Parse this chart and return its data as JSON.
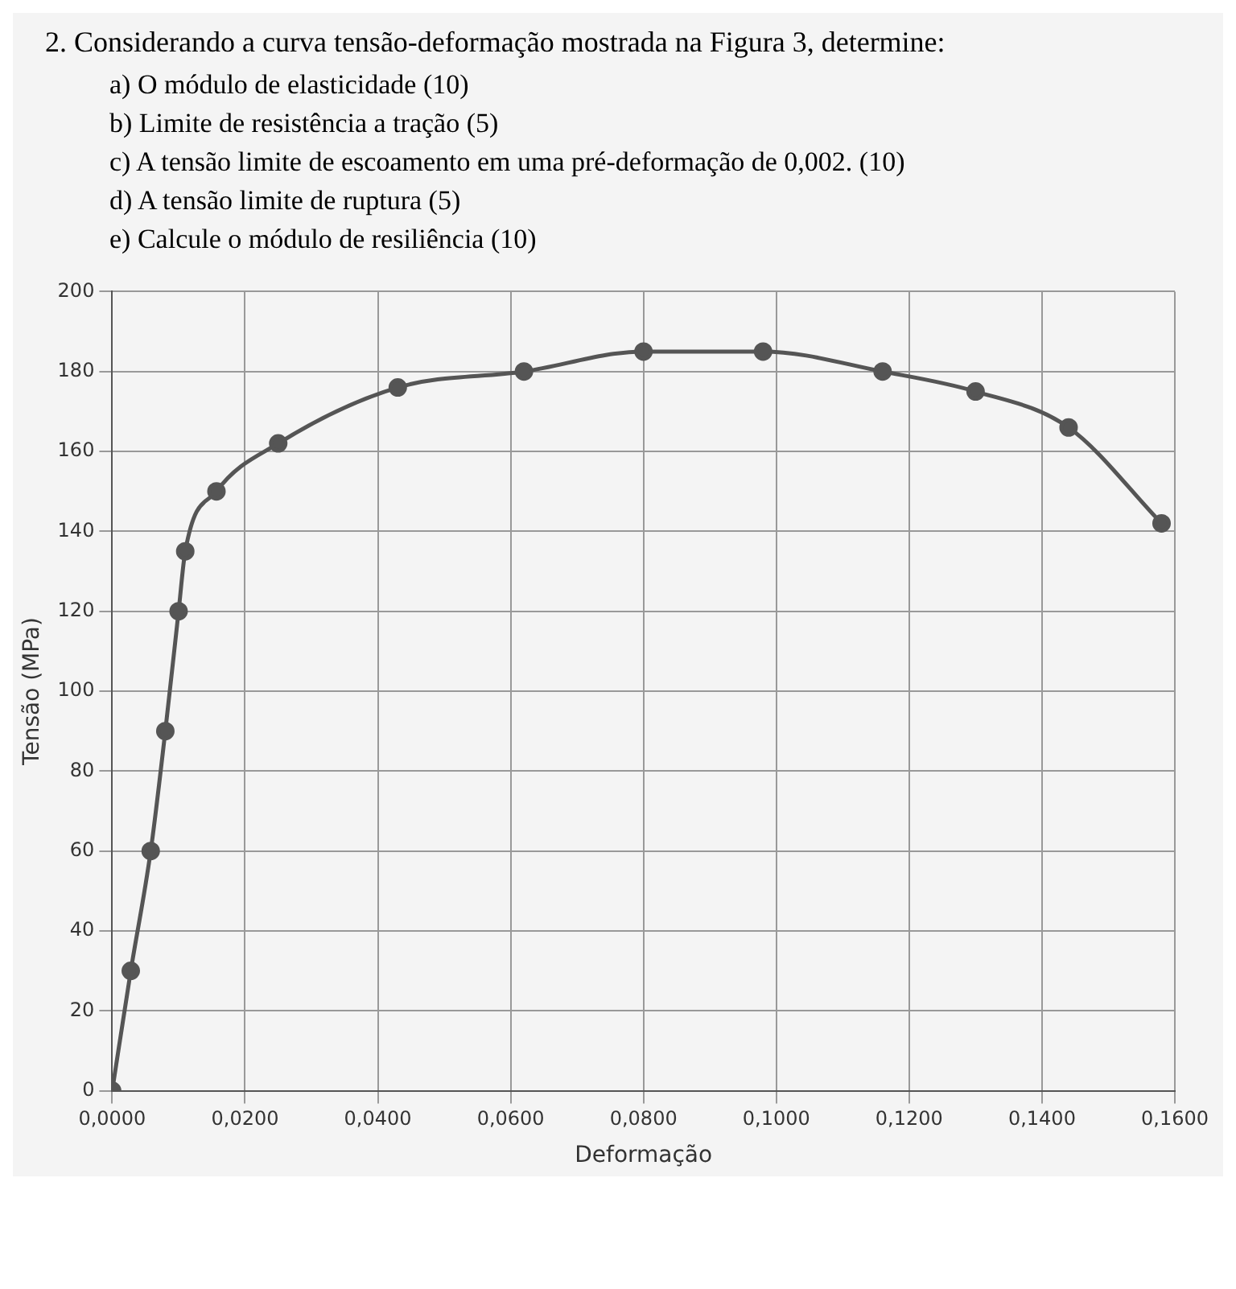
{
  "chart_data": {
    "type": "line",
    "title": "2. Considerando a curva tensão-deformação mostrada na Figura 3, determine:",
    "annotations": [
      "a) O módulo de elasticidade (10)",
      "b) Limite de resistência a tração (5)",
      "c) A tensão limite de escoamento em uma pré-deformação de 0,002. (10)",
      "d) A tensão limite de ruptura (5)",
      "e) Calcule o módulo de resiliência (10)"
    ],
    "xlabel": "Deformação",
    "ylabel": "Tensão (MPa)",
    "x": [
      0,
      0.0028,
      0.0058,
      0.008,
      0.01,
      0.011,
      0.0157,
      0.025,
      0.043,
      0.062,
      0.08,
      0.098,
      0.116,
      0.13,
      0.144,
      0.158
    ],
    "series": [
      {
        "color": "#555555",
        "values": [
          0,
          30,
          60,
          90,
          120,
          135,
          150,
          162,
          176,
          180,
          185,
          185,
          180,
          175,
          166,
          142
        ]
      }
    ],
    "xlim": [
      0,
      0.16
    ],
    "xticks": [
      {
        "value": 0,
        "label": "0,0000"
      },
      {
        "value": 0.02,
        "label": "0,0200"
      },
      {
        "value": 0.04,
        "label": "0,0400"
      },
      {
        "value": 0.06,
        "label": "0,0600"
      },
      {
        "value": 0.08,
        "label": "0,0800"
      },
      {
        "value": 0.1,
        "label": "0,1000"
      },
      {
        "value": 0.12,
        "label": "0,1200"
      },
      {
        "value": 0.14,
        "label": "0,1400"
      },
      {
        "value": 0.16,
        "label": "0,1600"
      }
    ],
    "ylim": [
      0,
      200
    ],
    "yticks": [
      0,
      20,
      40,
      60,
      80,
      100,
      120,
      140,
      160,
      180,
      200
    ],
    "grid": true,
    "legend": false,
    "marker": "circle",
    "line_style": "solid"
  }
}
